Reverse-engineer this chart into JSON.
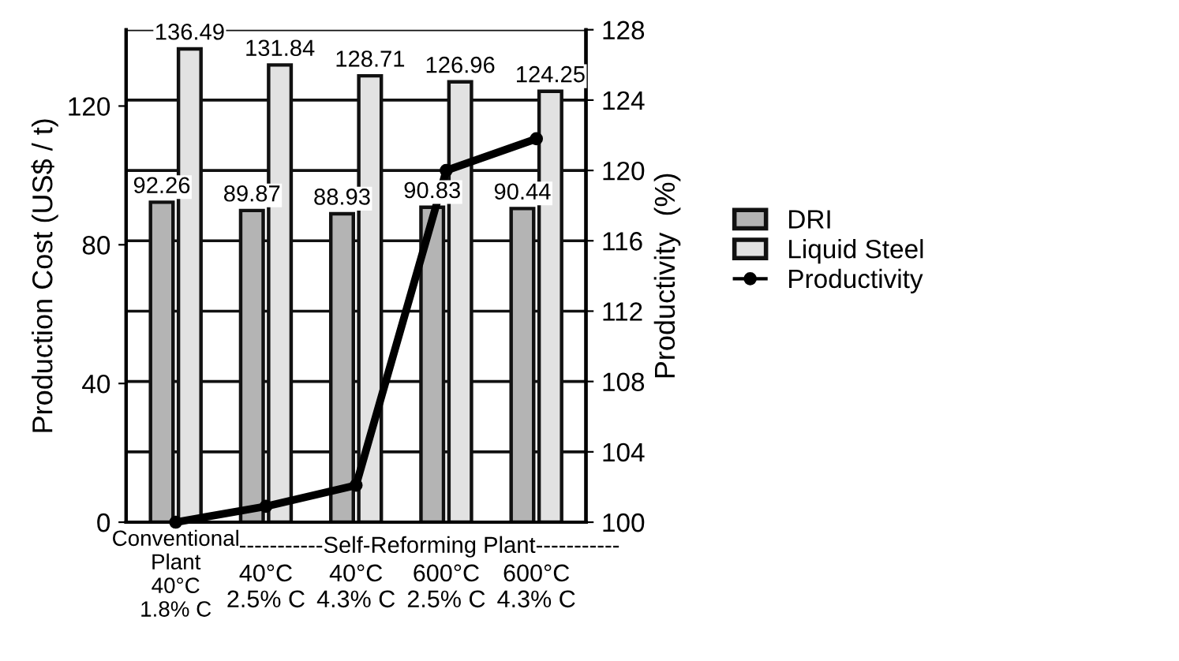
{
  "chart_data": {
    "type": "bar",
    "categories": [
      "Conventional\nPlant\n40°C\n1.8% C",
      "40°C\n2.5% C",
      "40°C\n4.3% C",
      "600°C\n2.5% C",
      "600°C\n4.3% C"
    ],
    "series": [
      {
        "name": "DRI",
        "color": "#b4b4b4",
        "values": [
          92.26,
          89.87,
          88.93,
          90.83,
          90.44
        ],
        "value_labels": [
          "92.26",
          "89.87",
          "88.93",
          "90.83",
          "90.44"
        ]
      },
      {
        "name": "Liquid Steel",
        "color": "#e2e2e2",
        "values": [
          136.49,
          131.84,
          128.71,
          126.96,
          124.25
        ],
        "value_labels": [
          "136.49",
          "131.84",
          "128.71",
          "126.96",
          "124.25"
        ]
      },
      {
        "name": "Productivity",
        "type": "line",
        "axis": "y2",
        "color": "#000000",
        "marker": "circle",
        "values": [
          100,
          100.9,
          102.1,
          120,
          121.8
        ]
      }
    ],
    "ylabel": "Production Cost (US$ / t)",
    "y2label": "Productivity  (%)",
    "ylim": [
      0,
      142
    ],
    "yticks": [
      0,
      40,
      80,
      120
    ],
    "y2lim": [
      100,
      128
    ],
    "y2ticks": [
      100,
      104,
      108,
      112,
      116,
      120,
      124,
      128
    ],
    "annotations": [
      "-----------Self-Reforming Plant-----------"
    ],
    "grid": "y2",
    "legend": "right"
  }
}
